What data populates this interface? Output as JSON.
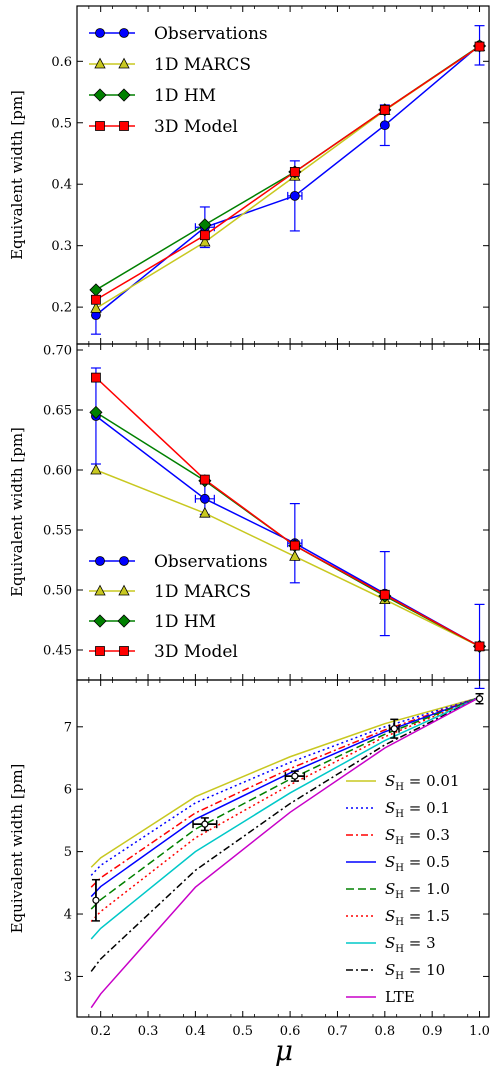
{
  "figure": {
    "xlabel": "μ"
  },
  "chart_data": [
    {
      "type": "line",
      "ylabel": "Equivalent width [pm]",
      "xlim": [
        0.15,
        1.02
      ],
      "ylim": [
        0.14,
        0.69
      ],
      "yticks": [
        0.2,
        0.3,
        0.4,
        0.5,
        0.6
      ],
      "ytick_labels": [
        "0.2",
        "0.3",
        "0.4",
        "0.5",
        "0.6"
      ],
      "legend_position": "top-left",
      "series": [
        {
          "name": "Observations",
          "color": "#0000ff",
          "marker": "circle",
          "x": [
            0.19,
            0.42,
            0.61,
            0.8,
            1.0
          ],
          "y": [
            0.187,
            0.33,
            0.381,
            0.496,
            0.626
          ],
          "yerr": [
            0.031,
            0.033,
            0.057,
            0.033,
            0.032
          ],
          "xerr": [
            0,
            0.02,
            0.015,
            0,
            0
          ]
        },
        {
          "name": "1D MARCS",
          "color": "#c8c820",
          "marker": "triangle",
          "x": [
            0.19,
            0.42,
            0.61,
            0.8,
            1.0
          ],
          "y": [
            0.198,
            0.306,
            0.413,
            0.52,
            0.624
          ]
        },
        {
          "name": "1D HM",
          "color": "#008000",
          "marker": "diamond",
          "x": [
            0.19,
            0.42,
            0.61,
            0.8,
            1.0
          ],
          "y": [
            0.228,
            0.334,
            0.42,
            0.521,
            0.625
          ]
        },
        {
          "name": "3D Model",
          "color": "#ff0000",
          "marker": "square",
          "x": [
            0.19,
            0.42,
            0.61,
            0.8,
            1.0
          ],
          "y": [
            0.212,
            0.317,
            0.42,
            0.521,
            0.624
          ]
        }
      ]
    },
    {
      "type": "line",
      "ylabel": "Equivalent width [pm]",
      "xlim": [
        0.15,
        1.02
      ],
      "ylim": [
        0.425,
        0.705
      ],
      "yticks": [
        0.45,
        0.5,
        0.55,
        0.6,
        0.65,
        0.7
      ],
      "ytick_labels": [
        "0.45",
        "0.50",
        "0.55",
        "0.60",
        "0.65",
        "0.70"
      ],
      "legend_position": "bottom-left",
      "series": [
        {
          "name": "Observations",
          "color": "#0000ff",
          "marker": "circle",
          "x": [
            0.19,
            0.42,
            0.61,
            0.8,
            1.0
          ],
          "y": [
            0.645,
            0.576,
            0.539,
            0.497,
            0.453
          ],
          "yerr": [
            0.04,
            0.013,
            0.033,
            0.035,
            0.035
          ],
          "xerr": [
            0,
            0.02,
            0.015,
            0,
            0
          ]
        },
        {
          "name": "1D MARCS",
          "color": "#c8c820",
          "marker": "triangle",
          "x": [
            0.19,
            0.42,
            0.61,
            0.8,
            1.0
          ],
          "y": [
            0.6,
            0.564,
            0.528,
            0.492,
            0.453
          ]
        },
        {
          "name": "1D HM",
          "color": "#008000",
          "marker": "diamond",
          "x": [
            0.19,
            0.42,
            0.61,
            0.8,
            1.0
          ],
          "y": [
            0.648,
            0.591,
            0.537,
            0.495,
            0.453
          ]
        },
        {
          "name": "3D Model",
          "color": "#ff0000",
          "marker": "square",
          "x": [
            0.19,
            0.42,
            0.61,
            0.8,
            1.0
          ],
          "y": [
            0.677,
            0.592,
            0.537,
            0.496,
            0.453
          ]
        }
      ]
    },
    {
      "type": "line",
      "ylabel": "Equivalent width [pm]",
      "xlabel": "μ",
      "xlim": [
        0.15,
        1.02
      ],
      "ylim": [
        2.35,
        7.75
      ],
      "yticks": [
        3,
        4,
        5,
        6,
        7
      ],
      "ytick_labels": [
        "3",
        "4",
        "5",
        "6",
        "7"
      ],
      "xticks": [
        0.2,
        0.3,
        0.4,
        0.5,
        0.6,
        0.7,
        0.8,
        0.9,
        1.0
      ],
      "xtick_labels": [
        "0.2",
        "0.3",
        "0.4",
        "0.5",
        "0.6",
        "0.7",
        "0.8",
        "0.9",
        "1.0"
      ],
      "legend_position": "right",
      "observations": {
        "x": [
          0.19,
          0.42,
          0.61,
          0.82,
          1.0
        ],
        "y": [
          4.22,
          5.44,
          6.21,
          6.97,
          7.45
        ],
        "yerr": [
          0.33,
          0.1,
          0.08,
          0.15,
          0.08
        ],
        "xerr": [
          0,
          0.025,
          0.02,
          0.01,
          0
        ]
      },
      "series": [
        {
          "name_sub": "0.01",
          "color": "#c8c820",
          "dash": "",
          "x": [
            0.18,
            0.2,
            0.4,
            0.6,
            0.8,
            1.0
          ],
          "y": [
            4.75,
            4.9,
            5.88,
            6.52,
            7.05,
            7.47
          ]
        },
        {
          "name_sub": "0.1",
          "color": "#0000ff",
          "dash": "2,3",
          "x": [
            0.18,
            0.2,
            0.4,
            0.6,
            0.8,
            1.0
          ],
          "y": [
            4.62,
            4.78,
            5.78,
            6.43,
            7.0,
            7.47
          ]
        },
        {
          "name_sub": "0.3",
          "color": "#ff0000",
          "dash": "7,3,2,3",
          "x": [
            0.18,
            0.2,
            0.4,
            0.6,
            0.8,
            1.0
          ],
          "y": [
            4.43,
            4.58,
            5.62,
            6.33,
            6.95,
            7.47
          ]
        },
        {
          "name_sub": "0.5",
          "color": "#0000ff",
          "dash": "",
          "x": [
            0.18,
            0.2,
            0.4,
            0.6,
            0.8,
            1.0
          ],
          "y": [
            4.28,
            4.44,
            5.52,
            6.26,
            6.92,
            7.47
          ]
        },
        {
          "name_sub": "1.0",
          "color": "#008000",
          "dash": "8,4",
          "x": [
            0.18,
            0.2,
            0.4,
            0.6,
            0.8,
            1.0
          ],
          "y": [
            4.08,
            4.23,
            5.36,
            6.16,
            6.88,
            7.47
          ]
        },
        {
          "name_sub": "1.5",
          "color": "#ff0000",
          "dash": "2,3",
          "x": [
            0.18,
            0.2,
            0.4,
            0.6,
            0.8,
            1.0
          ],
          "y": [
            3.88,
            4.04,
            5.22,
            6.07,
            6.84,
            7.47
          ]
        },
        {
          "name_sub": "3",
          "color": "#00c8c8",
          "dash": "",
          "x": [
            0.18,
            0.2,
            0.4,
            0.6,
            0.8,
            1.0
          ],
          "y": [
            3.6,
            3.77,
            5.0,
            5.94,
            6.78,
            7.47
          ]
        },
        {
          "name_sub": "10",
          "color": "#000000",
          "dash": "7,3,2,3",
          "x": [
            0.18,
            0.2,
            0.4,
            0.6,
            0.8,
            1.0
          ],
          "y": [
            3.08,
            3.28,
            4.7,
            5.77,
            6.71,
            7.47
          ]
        },
        {
          "name": "LTE",
          "color": "#c800c8",
          "dash": "",
          "x": [
            0.18,
            0.2,
            0.4,
            0.6,
            0.8,
            1.0
          ],
          "y": [
            2.5,
            2.72,
            4.43,
            5.63,
            6.66,
            7.47
          ]
        }
      ],
      "legend_prefix_main": "S",
      "legend_prefix_sub": "H",
      "legend_eq": " = "
    }
  ]
}
